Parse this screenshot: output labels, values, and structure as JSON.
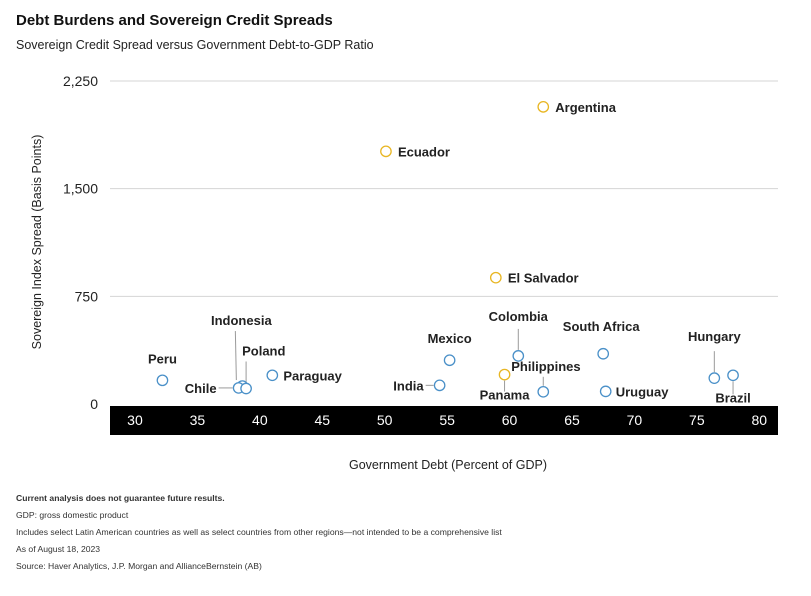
{
  "title": "Debt Burdens and Sovereign Credit Spreads",
  "subtitle": "Sovereign Credit Spread versus Government Debt-to-GDP Ratio",
  "notes": {
    "disclaimer": "Current analysis does not guarantee future results.",
    "gdp": "GDP: gross domestic product",
    "scope": "Includes select Latin American countries as well as select countries from other regions—not intended to be a comprehensive list",
    "date": "As of August 18, 2023",
    "source": "Source: Haver Analytics, J.P. Morgan and AllianceBernstein (AB)"
  },
  "colors": {
    "blue_marker": "#4a90c8",
    "gold_marker": "#e8b623",
    "grid": "#d4d4d4",
    "axis_band": "#000000"
  },
  "chart_data": {
    "type": "scatter",
    "xlabel": "Government Debt (Percent of GDP)",
    "ylabel": "Sovereign Index Spread (Basis Points)",
    "xlim": [
      28,
      81.5
    ],
    "ylim": [
      0,
      2250
    ],
    "xticks": [
      30,
      35,
      40,
      45,
      50,
      55,
      60,
      65,
      70,
      75,
      80
    ],
    "yticks": [
      0,
      750,
      1500,
      2250
    ],
    "ytick_labels": [
      "0",
      "750",
      "1,500",
      "2,250"
    ],
    "grid": "horizontal",
    "points": [
      {
        "label": "Argentina",
        "x": 62.7,
        "y": 2070,
        "group": "gold"
      },
      {
        "label": "Ecuador",
        "x": 50.1,
        "y": 1760,
        "group": "gold"
      },
      {
        "label": "El Salvador",
        "x": 58.9,
        "y": 880,
        "group": "gold"
      },
      {
        "label": "Paraguay",
        "x": 41.0,
        "y": 200,
        "group": "blue"
      },
      {
        "label": "Peru",
        "x": 32.2,
        "y": 165,
        "group": "blue"
      },
      {
        "label": "Indonesia",
        "x": 38.6,
        "y": 125,
        "group": "blue"
      },
      {
        "label": "Chile",
        "x": 38.3,
        "y": 112,
        "group": "blue"
      },
      {
        "label": "Poland",
        "x": 38.9,
        "y": 108,
        "group": "blue"
      },
      {
        "label": "Mexico",
        "x": 55.2,
        "y": 305,
        "group": "blue"
      },
      {
        "label": "India",
        "x": 54.4,
        "y": 130,
        "group": "blue"
      },
      {
        "label": "Colombia",
        "x": 60.7,
        "y": 335,
        "group": "blue"
      },
      {
        "label": "Philippines",
        "x": 62.7,
        "y": 85,
        "group": "blue"
      },
      {
        "label": "Panama",
        "x": 59.6,
        "y": 205,
        "group": "gold"
      },
      {
        "label": "South Africa",
        "x": 67.5,
        "y": 350,
        "group": "blue"
      },
      {
        "label": "Uruguay",
        "x": 67.7,
        "y": 88,
        "group": "blue"
      },
      {
        "label": "Hungary",
        "x": 76.4,
        "y": 180,
        "group": "blue"
      },
      {
        "label": "Brazil",
        "x": 77.9,
        "y": 200,
        "group": "blue"
      }
    ]
  }
}
